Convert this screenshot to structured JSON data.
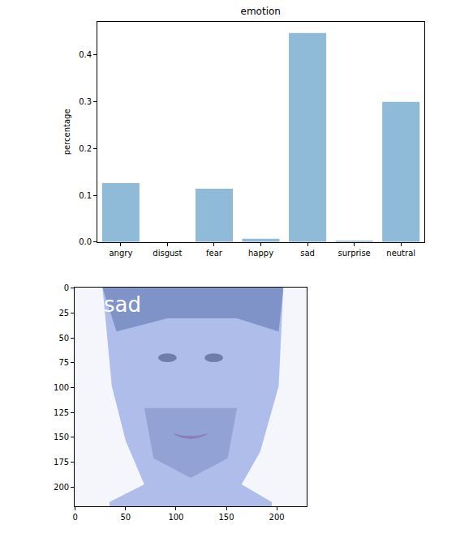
{
  "chart_data": [
    {
      "type": "bar",
      "title": "emotion",
      "y_label": "percentage",
      "categories": [
        "angry",
        "disgust",
        "fear",
        "happy",
        "sad",
        "surprise",
        "neutral"
      ],
      "values": [
        0.126,
        0.0,
        0.114,
        0.007,
        0.447,
        0.003,
        0.3
      ],
      "color": "#8fbbd9",
      "ylim": [
        0,
        0.471
      ],
      "yticks": [
        {
          "value": 0,
          "label": "0.0"
        },
        0.1,
        0.2,
        0.3,
        0.4
      ],
      "grid": false
    },
    {
      "type": "image",
      "annotations": [
        "sad"
      ],
      "xlim": [
        -0.5,
        229.5
      ],
      "ylim": [
        219.5,
        -0.5
      ],
      "xticks": [
        0,
        50,
        100,
        150,
        200
      ],
      "yticks": [
        0,
        25,
        50,
        75,
        100,
        125,
        150,
        175,
        200
      ]
    }
  ]
}
